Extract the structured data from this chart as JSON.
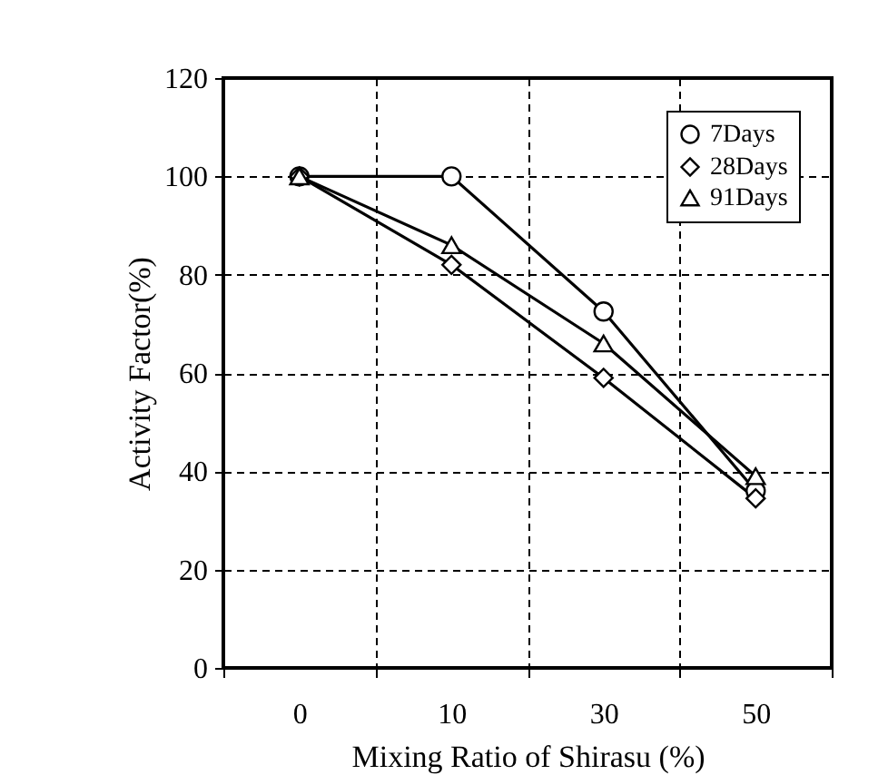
{
  "chart_data": {
    "type": "line",
    "xlabel": "Mixing Ratio of Shirasu (%)",
    "ylabel": "Activity Factor(%)",
    "categories": [
      "0",
      "10",
      "30",
      "50"
    ],
    "series": [
      {
        "name": "7Days",
        "color": "#000000",
        "marker": "circle",
        "values": [
          100,
          100,
          72.5,
          36
        ]
      },
      {
        "name": "28Days",
        "color": "#000000",
        "marker": "diamond",
        "values": [
          100,
          82,
          59,
          34.5
        ]
      },
      {
        "name": "91Days",
        "color": "#000000",
        "marker": "triangle",
        "values": [
          100,
          86,
          66,
          39
        ]
      }
    ],
    "ylim": [
      0,
      120
    ],
    "yticks": [
      0,
      20,
      40,
      60,
      80,
      100,
      120
    ],
    "grid": true,
    "legend": "top right",
    "line_style": "solid"
  }
}
